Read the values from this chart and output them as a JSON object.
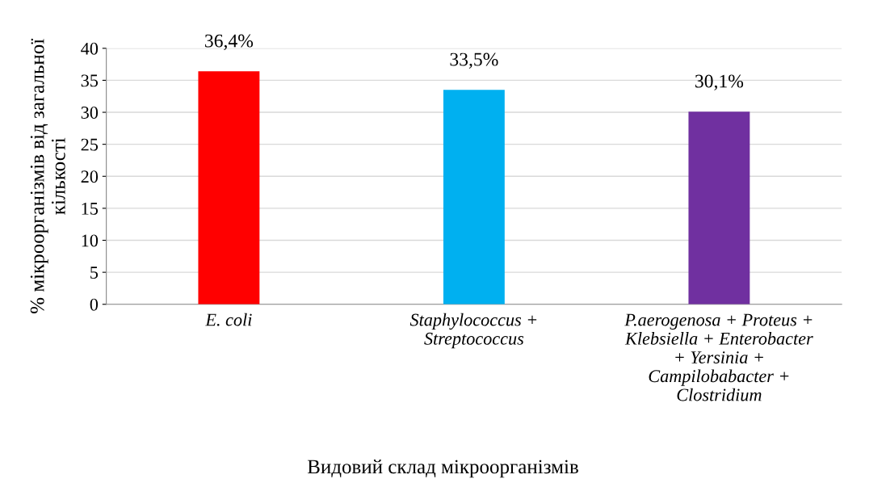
{
  "chart_data": {
    "type": "bar",
    "categories": [
      "E. coli",
      "Staphylococcus +\nStreptococcus",
      "P.aerogenosa + Proteus +\nKlebsiella + Enterobacter\n+ Yersinia +\nCampilobabacter +\nClostridium"
    ],
    "values": [
      36.4,
      33.5,
      30.1
    ],
    "value_labels": [
      "36,4%",
      "33,5%",
      "30,1%"
    ],
    "colors": [
      "#ff0000",
      "#00b0f0",
      "#7030a0"
    ],
    "xlabel": "Видовий склад мікроорганізмів",
    "ylabel": "% мікроорганізмів від загальної\nкількості",
    "ylim": [
      0,
      40
    ],
    "yticks": [
      0,
      5,
      10,
      15,
      20,
      25,
      30,
      35,
      40
    ],
    "grid": "y"
  }
}
